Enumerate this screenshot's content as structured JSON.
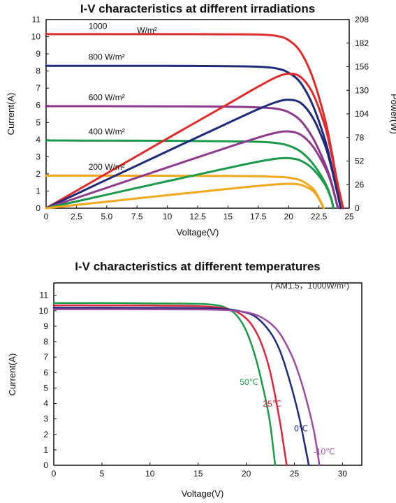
{
  "chart_data": [
    {
      "type": "line",
      "title": "I-V characteristics at different irradiations",
      "xlabel": "Voltage(V)",
      "ylabel": "Current(A)",
      "y2label": "Power(W)",
      "xlim": [
        0,
        25
      ],
      "ylim": [
        0,
        11
      ],
      "y2lim": [
        0,
        208
      ],
      "x_ticks": [
        "0",
        "2.5",
        "5.0",
        "7.5",
        "10",
        "12.5",
        "15",
        "17.5",
        "20",
        "22.5",
        "25"
      ],
      "x_tick_values": [
        0,
        2.5,
        5,
        7.5,
        10,
        12.5,
        15,
        17.5,
        20,
        22.5,
        25
      ],
      "y_ticks": [
        "0",
        "1",
        "2",
        "3",
        "4",
        "5",
        "6",
        "7",
        "8",
        "9",
        "10",
        "11"
      ],
      "y_tick_values": [
        0,
        1,
        2,
        3,
        4,
        5,
        6,
        7,
        8,
        9,
        10,
        11
      ],
      "y2_ticks": [
        "0",
        "26",
        "52",
        "78",
        "104",
        "130",
        "156",
        "182",
        "208"
      ],
      "y2_tick_values": [
        0,
        26,
        52,
        78,
        104,
        130,
        156,
        182,
        208
      ],
      "grid": false,
      "series": [
        {
          "name": "1000 W/m²",
          "color": "#e02b2b",
          "axis": "left",
          "points": [
            [
              0,
              10.15
            ],
            [
              5,
              10.15
            ],
            [
              10,
              10.15
            ],
            [
              15,
              10.14
            ],
            [
              17.5,
              10.13
            ],
            [
              19,
              10.05
            ],
            [
              20,
              9.8
            ],
            [
              21,
              9.1
            ],
            [
              22,
              7.6
            ],
            [
              23,
              5.2
            ],
            [
              23.5,
              3.5
            ],
            [
              24,
              1.6
            ],
            [
              24.5,
              0
            ]
          ]
        },
        {
          "name": "800 W/m²",
          "color": "#1e2a7a",
          "axis": "left",
          "points": [
            [
              0,
              8.3
            ],
            [
              5,
              8.3
            ],
            [
              10,
              8.3
            ],
            [
              15,
              8.28
            ],
            [
              17.5,
              8.25
            ],
            [
              19,
              8.15
            ],
            [
              20,
              7.9
            ],
            [
              21,
              7.3
            ],
            [
              22,
              6.0
            ],
            [
              23,
              4.0
            ],
            [
              23.5,
              2.6
            ],
            [
              24,
              1.0
            ],
            [
              24.3,
              0
            ]
          ]
        },
        {
          "name": "600 W/m²",
          "color": "#8e3a8c",
          "axis": "left",
          "points": [
            [
              0,
              5.95
            ],
            [
              5,
              5.95
            ],
            [
              10,
              5.94
            ],
            [
              15,
              5.92
            ],
            [
              17.5,
              5.88
            ],
            [
              19,
              5.8
            ],
            [
              20,
              5.6
            ],
            [
              21,
              5.1
            ],
            [
              22,
              4.1
            ],
            [
              23,
              2.6
            ],
            [
              23.5,
              1.6
            ],
            [
              24,
              0.2
            ],
            [
              24.1,
              0
            ]
          ]
        },
        {
          "name": "400 W/m²",
          "color": "#1a9a4a",
          "axis": "left",
          "points": [
            [
              0,
              3.95
            ],
            [
              5,
              3.94
            ],
            [
              10,
              3.93
            ],
            [
              15,
              3.9
            ],
            [
              17.5,
              3.87
            ],
            [
              19,
              3.8
            ],
            [
              20,
              3.65
            ],
            [
              21,
              3.3
            ],
            [
              22,
              2.6
            ],
            [
              23,
              1.5
            ],
            [
              23.5,
              0.6
            ],
            [
              23.7,
              0
            ]
          ]
        },
        {
          "name": "200 W/m²",
          "color": "#f2a81d",
          "axis": "left",
          "points": [
            [
              0,
              1.9
            ],
            [
              5,
              1.9
            ],
            [
              10,
              1.89
            ],
            [
              15,
              1.88
            ],
            [
              17.5,
              1.86
            ],
            [
              19,
              1.83
            ],
            [
              20,
              1.78
            ],
            [
              21,
              1.62
            ],
            [
              22,
              1.15
            ],
            [
              22.5,
              0.6
            ],
            [
              22.9,
              0
            ]
          ]
        },
        {
          "name": "P 1000 W/m²",
          "color": "#e02b2b",
          "axis": "right",
          "points": [
            [
              0,
              0
            ],
            [
              5,
              38.4
            ],
            [
              10,
              76.8
            ],
            [
              15,
              114.9
            ],
            [
              17.5,
              134.1
            ],
            [
              19,
              144.5
            ],
            [
              20,
              148.3
            ],
            [
              21,
              144.6
            ],
            [
              22,
              126.5
            ],
            [
              23,
              90.5
            ],
            [
              23.5,
              62.2
            ],
            [
              24,
              29.1
            ],
            [
              24.5,
              0
            ]
          ]
        },
        {
          "name": "P 800 W/m²",
          "color": "#1e2a7a",
          "axis": "right",
          "points": [
            [
              0,
              0
            ],
            [
              5,
              31.4
            ],
            [
              10,
              62.8
            ],
            [
              15,
              93.9
            ],
            [
              17.5,
              109.2
            ],
            [
              19,
              117.1
            ],
            [
              20,
              119.5
            ],
            [
              21,
              116.0
            ],
            [
              22,
              99.8
            ],
            [
              23,
              69.6
            ],
            [
              23.5,
              46.2
            ],
            [
              24,
              18.1
            ],
            [
              24.3,
              0
            ]
          ]
        },
        {
          "name": "P 600 W/m²",
          "color": "#8e3a8c",
          "axis": "right",
          "points": [
            [
              0,
              0
            ],
            [
              5,
              22.5
            ],
            [
              10,
              44.9
            ],
            [
              15,
              67.2
            ],
            [
              17.5,
              77.9
            ],
            [
              19,
              83.3
            ],
            [
              20,
              84.7
            ],
            [
              21,
              81.0
            ],
            [
              22,
              68.2
            ],
            [
              23,
              45.2
            ],
            [
              23.5,
              28.4
            ],
            [
              24,
              3.6
            ],
            [
              24.1,
              0
            ]
          ]
        },
        {
          "name": "P 400 W/m²",
          "color": "#1a9a4a",
          "axis": "right",
          "points": [
            [
              0,
              0
            ],
            [
              5,
              14.9
            ],
            [
              10,
              29.7
            ],
            [
              15,
              44.3
            ],
            [
              17.5,
              51.3
            ],
            [
              19,
              54.6
            ],
            [
              20,
              55.2
            ],
            [
              21,
              52.4
            ],
            [
              22,
              43.3
            ],
            [
              23,
              26.1
            ],
            [
              23.5,
              10.7
            ],
            [
              23.7,
              0
            ]
          ]
        },
        {
          "name": "P 200 W/m²",
          "color": "#f2a81d",
          "axis": "right",
          "points": [
            [
              0,
              0
            ],
            [
              5,
              7.2
            ],
            [
              10,
              14.3
            ],
            [
              15,
              21.3
            ],
            [
              17.5,
              24.6
            ],
            [
              19,
              26.3
            ],
            [
              20,
              26.9
            ],
            [
              21,
              25.7
            ],
            [
              22,
              19.1
            ],
            [
              22.5,
              10.2
            ],
            [
              22.9,
              0
            ]
          ]
        }
      ],
      "annotations": [
        {
          "text": "1000",
          "x": 3.5,
          "y": 10.45,
          "color": "#111111"
        },
        {
          "text": "W/m²",
          "x": 7.5,
          "y": 10.2,
          "color": "#111111"
        },
        {
          "text": "800 W/m²",
          "x": 3.5,
          "y": 8.65,
          "color": "#111111"
        },
        {
          "text": "600 W/m²",
          "x": 3.5,
          "y": 6.3,
          "color": "#111111"
        },
        {
          "text": "400 W/m²",
          "x": 3.5,
          "y": 4.3,
          "color": "#111111"
        },
        {
          "text": "200 W/m²",
          "x": 3.5,
          "y": 2.25,
          "color": "#111111"
        }
      ]
    },
    {
      "type": "line",
      "title": "I-V characteristics at different temperatures",
      "subtitle": "( AM1.5，1000W/m²)",
      "xlabel": "Voltage(V)",
      "ylabel": "Current(A)",
      "xlim": [
        0,
        32
      ],
      "ylim": [
        0,
        11.8
      ],
      "x_ticks": [
        "0",
        "5",
        "10",
        "15",
        "20",
        "25",
        "30"
      ],
      "x_tick_values": [
        0,
        5,
        10,
        15,
        20,
        25,
        30
      ],
      "y_ticks": [
        "0",
        "1",
        "2",
        "3",
        "4",
        "5",
        "6",
        "7",
        "8",
        "9",
        "10",
        "11"
      ],
      "y_tick_values": [
        0,
        1,
        2,
        3,
        4,
        5,
        6,
        7,
        8,
        9,
        10,
        11
      ],
      "grid": false,
      "series": [
        {
          "name": "50℃",
          "color": "#1a9a4a",
          "points": [
            [
              0,
              10.5
            ],
            [
              5,
              10.5
            ],
            [
              10,
              10.48
            ],
            [
              15,
              10.45
            ],
            [
              17,
              10.35
            ],
            [
              18,
              10.15
            ],
            [
              19,
              9.7
            ],
            [
              20,
              8.7
            ],
            [
              21,
              6.9
            ],
            [
              22,
              4.3
            ],
            [
              22.5,
              2.6
            ],
            [
              23,
              0
            ]
          ]
        },
        {
          "name": "25℃",
          "color": "#d9263c",
          "points": [
            [
              0,
              10.35
            ],
            [
              5,
              10.35
            ],
            [
              10,
              10.34
            ],
            [
              15,
              10.3
            ],
            [
              17,
              10.22
            ],
            [
              18.5,
              10.05
            ],
            [
              19.5,
              9.75
            ],
            [
              20.5,
              9.15
            ],
            [
              21.5,
              8.0
            ],
            [
              22.5,
              6.0
            ],
            [
              23.5,
              2.8
            ],
            [
              24,
              0.8
            ],
            [
              24.2,
              0
            ]
          ]
        },
        {
          "name": "0℃",
          "color": "#1e2a7a",
          "points": [
            [
              0,
              10.2
            ],
            [
              5,
              10.2
            ],
            [
              10,
              10.19
            ],
            [
              15,
              10.17
            ],
            [
              18,
              10.1
            ],
            [
              19.5,
              9.95
            ],
            [
              21,
              9.6
            ],
            [
              22.5,
              8.6
            ],
            [
              23.5,
              7.4
            ],
            [
              24.5,
              5.5
            ],
            [
              25.5,
              3.1
            ],
            [
              26.5,
              0
            ]
          ]
        },
        {
          "name": "-10℃",
          "color": "#9a4d9f",
          "points": [
            [
              0,
              10.1
            ],
            [
              5,
              10.1
            ],
            [
              10,
              10.09
            ],
            [
              15,
              10.08
            ],
            [
              18,
              10.04
            ],
            [
              20,
              9.9
            ],
            [
              21.5,
              9.6
            ],
            [
              23,
              8.9
            ],
            [
              24,
              8.0
            ],
            [
              25,
              6.7
            ],
            [
              26,
              4.8
            ],
            [
              27,
              2.3
            ],
            [
              27.6,
              0
            ]
          ]
        }
      ],
      "annotations": [
        {
          "text": "50℃",
          "x": 20.3,
          "y": 5.2,
          "color": "#1a9a4a"
        },
        {
          "text": "25℃",
          "x": 22.7,
          "y": 3.8,
          "color": "#d9263c"
        },
        {
          "text": "0℃",
          "x": 25.7,
          "y": 2.2,
          "color": "#1e2a7a"
        },
        {
          "text": "-10℃",
          "x": 28.1,
          "y": 0.7,
          "color": "#9a4d9f"
        }
      ]
    }
  ]
}
